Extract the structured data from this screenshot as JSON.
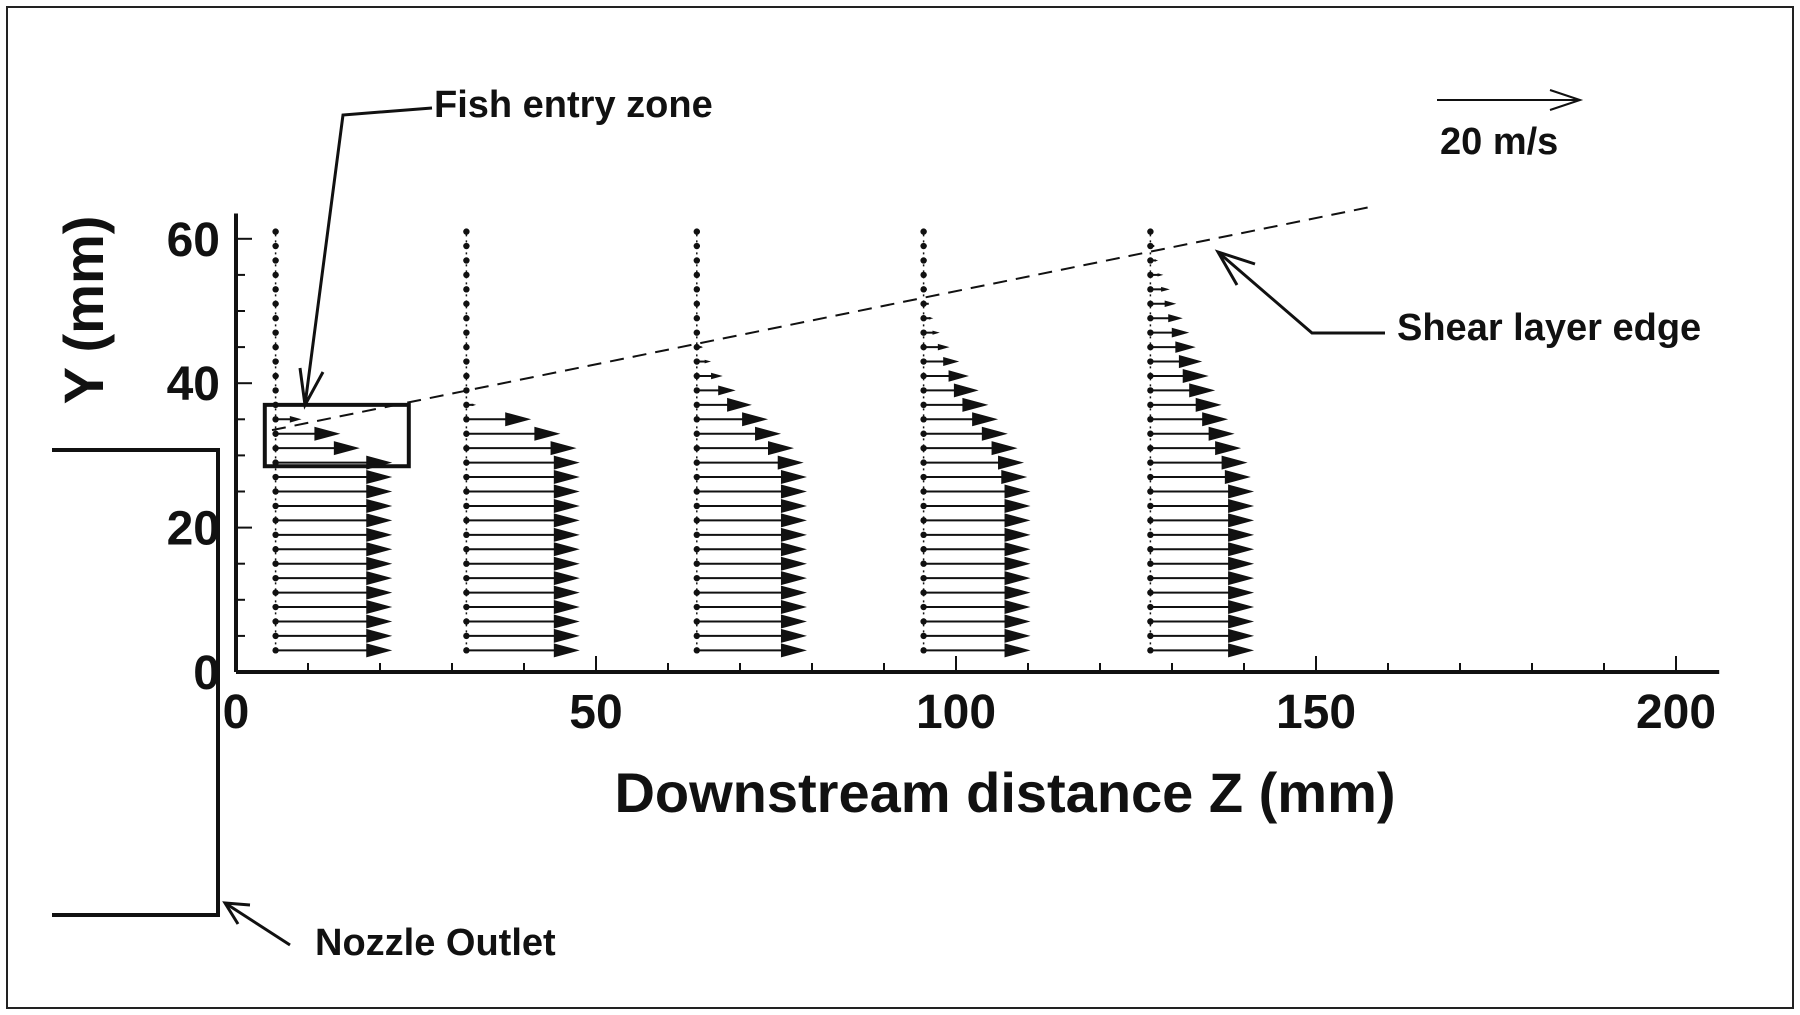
{
  "chart_data": {
    "type": "vector-profile",
    "xlabel": "Downstream distance Z (mm)",
    "ylabel": "Y (mm)",
    "xlim": [
      0,
      205
    ],
    "ylim": [
      0,
      65
    ],
    "x_ticks": [
      0,
      50,
      100,
      150,
      200
    ],
    "y_ticks": [
      0,
      20,
      40,
      60
    ],
    "reference_vector": {
      "label": "20 m/s",
      "speed": 20
    },
    "vector_scale_mm_per_ms": 0.9,
    "stations": [
      {
        "z": 5.5,
        "y": [
          3,
          5,
          7,
          9,
          11,
          13,
          15,
          17,
          19,
          21,
          23,
          25,
          27,
          29,
          31,
          33,
          35,
          37,
          39,
          41,
          43,
          45,
          47,
          49,
          51,
          53,
          55,
          57,
          59,
          61
        ],
        "speed": [
          18,
          18,
          18,
          18,
          18,
          18,
          18,
          18,
          18,
          18,
          18,
          18,
          18,
          18,
          13,
          10,
          4,
          0.6,
          0.4,
          0.3,
          0.3,
          0.3,
          0.3,
          0.3,
          0.3,
          0.3,
          0.3,
          0.3,
          0.3,
          0.3
        ]
      },
      {
        "z": 32,
        "y": [
          3,
          5,
          7,
          9,
          11,
          13,
          15,
          17,
          19,
          21,
          23,
          25,
          27,
          29,
          31,
          33,
          35,
          37,
          39,
          41,
          43,
          45,
          47,
          49,
          51,
          53,
          55,
          57,
          59,
          61
        ],
        "speed": [
          17.5,
          17.5,
          17.5,
          17.5,
          17.5,
          17.5,
          17.5,
          17.5,
          17.5,
          17.5,
          17.5,
          17.5,
          17.5,
          17.5,
          17,
          14.5,
          10,
          1.5,
          0.4,
          0.3,
          0.3,
          0.3,
          0.3,
          0.3,
          0.3,
          0.3,
          0.3,
          0.3,
          0.3,
          0.3
        ]
      },
      {
        "z": 64,
        "y": [
          3,
          5,
          7,
          9,
          11,
          13,
          15,
          17,
          19,
          21,
          23,
          25,
          27,
          29,
          31,
          33,
          35,
          37,
          39,
          41,
          43,
          45,
          47,
          49,
          51,
          53,
          55,
          57,
          59,
          61
        ],
        "speed": [
          17,
          17,
          17,
          17,
          17,
          17,
          17,
          17,
          17,
          17,
          17,
          17,
          17,
          16.5,
          15,
          13,
          11,
          8.5,
          6,
          4,
          2.2,
          1,
          0.5,
          0.4,
          0.3,
          0.3,
          0.3,
          0.3,
          0.3,
          0.3
        ]
      },
      {
        "z": 95.5,
        "y": [
          3,
          5,
          7,
          9,
          11,
          13,
          15,
          17,
          19,
          21,
          23,
          25,
          27,
          29,
          31,
          33,
          35,
          37,
          39,
          41,
          43,
          45,
          47,
          49,
          51,
          53,
          55,
          57,
          59,
          61
        ],
        "speed": [
          16.5,
          16.5,
          16.5,
          16.5,
          16.5,
          16.5,
          16.5,
          16.5,
          16.5,
          16.5,
          16.5,
          16.5,
          16,
          15.5,
          14.5,
          13,
          11.5,
          10,
          8.5,
          7,
          5.5,
          4,
          2.5,
          1.5,
          0.8,
          0.5,
          0.3,
          0.3,
          0.3,
          0.3
        ]
      },
      {
        "z": 127,
        "y": [
          3,
          5,
          7,
          9,
          11,
          13,
          15,
          17,
          19,
          21,
          23,
          25,
          27,
          29,
          31,
          33,
          35,
          37,
          39,
          41,
          43,
          45,
          47,
          49,
          51,
          53,
          55,
          57,
          59,
          61
        ],
        "speed": [
          16,
          16,
          16,
          16,
          16,
          16,
          16,
          16,
          16,
          16,
          16,
          16,
          15.5,
          15,
          14,
          13,
          12,
          11,
          10,
          9,
          8,
          7,
          6,
          5,
          4,
          3,
          2,
          1.2,
          0.6,
          0.3
        ]
      }
    ],
    "shear_layer_edge": {
      "from": [
        5,
        33.5
      ],
      "to": [
        158,
        64.5
      ]
    },
    "fish_entry_box": {
      "z": [
        4,
        24
      ],
      "y": [
        28.5,
        37
      ]
    }
  },
  "annotations": {
    "fish_entry": "Fish entry zone",
    "shear_layer": "Shear layer edge",
    "nozzle": "Nozzle Outlet"
  }
}
